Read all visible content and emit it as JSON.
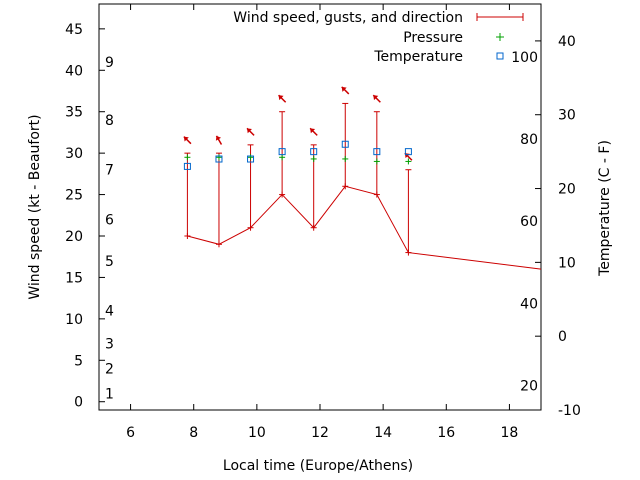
{
  "chart_data": {
    "type": "line",
    "xlabel": "Local time (Europe/Athens)",
    "ylabel": "Wind speed (kt - Beaufort)",
    "y2label": "Temperature (C - F)",
    "xlim": [
      5,
      19
    ],
    "ylim": [
      -1,
      48
    ],
    "y2lim": [
      -10,
      45
    ],
    "grid": false,
    "legend_position": "top-right",
    "x_ticks": [
      "6",
      "8",
      "10",
      "12",
      "14",
      "16",
      "18"
    ],
    "y_ticks": [
      "0",
      "5",
      "10",
      "15",
      "20",
      "25",
      "30",
      "35",
      "40",
      "45"
    ],
    "y2_ticks": [
      "-10",
      "0",
      "10",
      "20",
      "30",
      "40"
    ],
    "beaufort_labels": [
      {
        "label": "1",
        "kt": 1
      },
      {
        "label": "2",
        "kt": 4
      },
      {
        "label": "3",
        "kt": 7
      },
      {
        "label": "4",
        "kt": 11
      },
      {
        "label": "5",
        "kt": 17
      },
      {
        "label": "6",
        "kt": 22
      },
      {
        "label": "7",
        "kt": 28
      },
      {
        "label": "8",
        "kt": 34
      },
      {
        "label": "9",
        "kt": 41
      }
    ],
    "fahrenheit_labels": [
      {
        "label": "20",
        "c": -6.7
      },
      {
        "label": "40",
        "c": 4.4
      },
      {
        "label": "60",
        "c": 15.6
      },
      {
        "label": "80",
        "c": 26.7
      },
      {
        "label": "100",
        "c": 37.8
      }
    ],
    "series": [
      {
        "name": "Wind speed, gusts, and direction",
        "color": "#cc0000",
        "x": [
          7.8,
          8.8,
          9.8,
          10.8,
          11.8,
          12.8,
          13.8,
          14.8,
          19
        ],
        "values": [
          20,
          19,
          21,
          25,
          21,
          26,
          25,
          18,
          16
        ],
        "gusts": [
          30,
          30,
          31,
          35,
          31,
          36,
          35,
          28,
          null
        ],
        "direction_deg": [
          315,
          330,
          315,
          315,
          315,
          315,
          315,
          315,
          null
        ]
      },
      {
        "name": "Pressure",
        "color": "#00a000",
        "x": [
          7.8,
          8.8,
          9.8,
          10.8,
          11.8,
          12.8,
          13.8,
          14.8
        ],
        "values": [
          29.5,
          29.5,
          29.5,
          29.5,
          29.3,
          29.3,
          29.0,
          29.0
        ]
      },
      {
        "name": "Temperature",
        "color": "#0066cc",
        "x": [
          7.8,
          8.8,
          9.8,
          10.8,
          11.8,
          12.8,
          13.8,
          14.8
        ],
        "values": [
          23,
          24,
          24,
          25,
          25,
          26,
          25,
          25
        ]
      }
    ]
  }
}
